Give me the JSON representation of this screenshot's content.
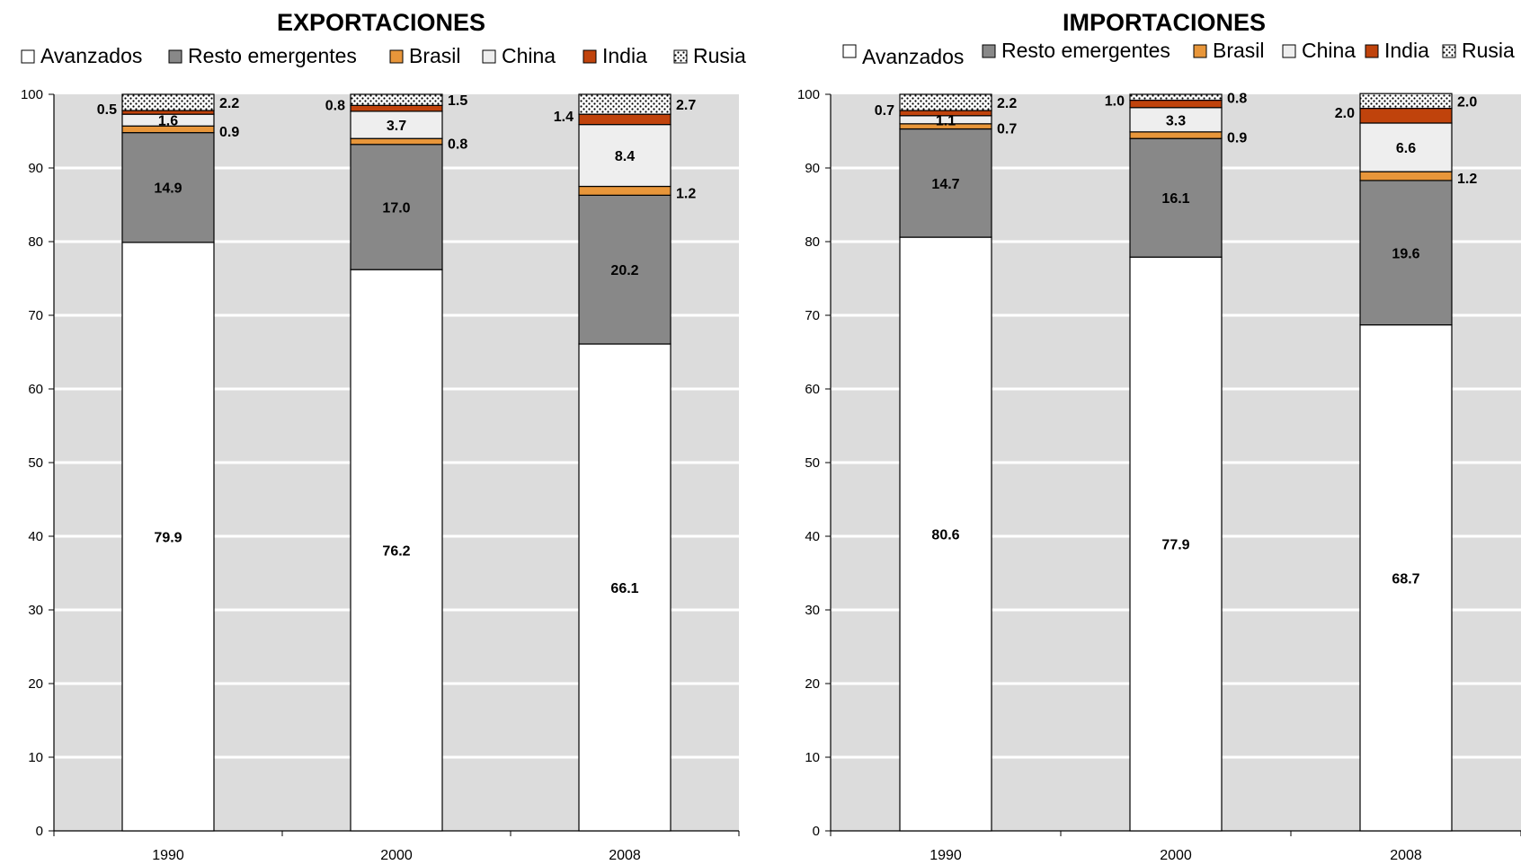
{
  "chart_data": [
    {
      "type": "bar",
      "stacked": true,
      "title": "EXPORTACIONES",
      "categories": [
        "1990",
        "2000",
        "2008"
      ],
      "series": [
        {
          "name": "Avanzados",
          "values": [
            79.9,
            76.2,
            66.1
          ]
        },
        {
          "name": "Resto emergentes",
          "values": [
            14.9,
            17.0,
            20.2
          ]
        },
        {
          "name": "Brasil",
          "values": [
            0.9,
            0.8,
            1.2
          ]
        },
        {
          "name": "China",
          "values": [
            1.6,
            3.7,
            8.4
          ]
        },
        {
          "name": "India",
          "values": [
            0.5,
            0.8,
            1.4
          ]
        },
        {
          "name": "Rusia",
          "values": [
            2.2,
            1.5,
            2.7
          ]
        }
      ],
      "ylim": [
        0,
        100
      ],
      "yticks": [
        0,
        10,
        20,
        30,
        40,
        50,
        60,
        70,
        80,
        90,
        100
      ],
      "grid": true,
      "legend": "top"
    },
    {
      "type": "bar",
      "stacked": true,
      "title": "IMPORTACIONES",
      "categories": [
        "1990",
        "2000",
        "2008"
      ],
      "series": [
        {
          "name": "Avanzados",
          "values": [
            80.6,
            77.9,
            68.7
          ]
        },
        {
          "name": "Resto emergentes",
          "values": [
            14.7,
            16.1,
            19.6
          ]
        },
        {
          "name": "Brasil",
          "values": [
            0.7,
            0.9,
            1.2
          ]
        },
        {
          "name": "China",
          "values": [
            1.1,
            3.3,
            6.6
          ]
        },
        {
          "name": "India",
          "values": [
            0.7,
            1.0,
            2.0
          ]
        },
        {
          "name": "Rusia",
          "values": [
            2.2,
            0.8,
            2.0
          ]
        }
      ],
      "ylim": [
        0,
        100
      ],
      "yticks": [
        0,
        10,
        20,
        30,
        40,
        50,
        60,
        70,
        80,
        90,
        100
      ],
      "grid": true,
      "legend": "top"
    }
  ],
  "colors": {
    "plot_bg": "#dcdcdc",
    "gridline": "#ffffff",
    "Avanzados": "#ffffff",
    "Resto emergentes": "#888888",
    "Brasil": "#e8963a",
    "China": "#eeeeee",
    "India": "#c0430c",
    "Rusia": "#ffffff"
  }
}
